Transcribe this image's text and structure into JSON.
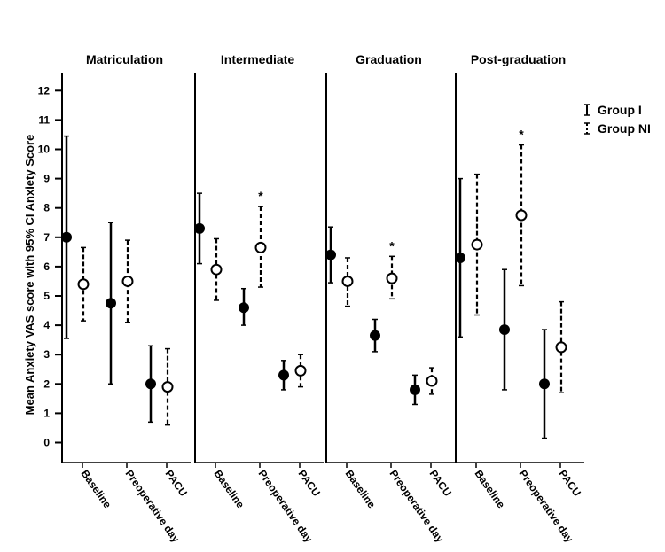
{
  "chart_data": {
    "type": "errorbar",
    "ylabel": "Mean Anxiety VAS score with 95% CI Anxiety Score",
    "yticks": [
      0,
      1,
      2,
      3,
      4,
      5,
      6,
      7,
      8,
      9,
      10,
      11,
      12
    ],
    "ylim": [
      -0.6,
      12.6
    ],
    "categories": [
      "Baseline",
      "Preoperative day",
      "PACU"
    ],
    "legend": {
      "position": "top-right",
      "entries": [
        {
          "label": "Group I",
          "style": "solid"
        },
        {
          "label": "Group NI",
          "style": "dashed"
        }
      ]
    },
    "significance_marker": "*",
    "panels": [
      {
        "title": "Matriculation",
        "series": [
          {
            "name": "Group I",
            "means": [
              7.0,
              4.75,
              2.0
            ],
            "lower": [
              3.55,
              2.0,
              0.7
            ],
            "upper": [
              10.45,
              7.5,
              3.3
            ]
          },
          {
            "name": "Group NI",
            "means": [
              5.4,
              5.5,
              1.9
            ],
            "lower": [
              4.15,
              4.1,
              0.6
            ],
            "upper": [
              6.65,
              6.9,
              3.2
            ]
          }
        ],
        "significant": [
          false,
          false,
          false
        ]
      },
      {
        "title": "Intermediate",
        "series": [
          {
            "name": "Group I",
            "means": [
              7.3,
              4.6,
              2.3
            ],
            "lower": [
              6.1,
              4.0,
              1.8
            ],
            "upper": [
              8.5,
              5.25,
              2.8
            ]
          },
          {
            "name": "Group NI",
            "means": [
              5.9,
              6.65,
              2.45
            ],
            "lower": [
              4.85,
              5.3,
              1.9
            ],
            "upper": [
              6.95,
              8.05,
              3.0
            ]
          }
        ],
        "significant": [
          false,
          true,
          false
        ]
      },
      {
        "title": "Graduation",
        "series": [
          {
            "name": "Group I",
            "means": [
              6.4,
              3.65,
              1.8
            ],
            "lower": [
              5.45,
              3.1,
              1.3
            ],
            "upper": [
              7.35,
              4.2,
              2.3
            ]
          },
          {
            "name": "Group NI",
            "means": [
              5.5,
              5.6,
              2.1
            ],
            "lower": [
              4.65,
              4.9,
              1.65
            ],
            "upper": [
              6.3,
              6.35,
              2.55
            ]
          }
        ],
        "significant": [
          false,
          true,
          false
        ]
      },
      {
        "title": "Post-graduation",
        "series": [
          {
            "name": "Group I",
            "means": [
              6.3,
              3.85,
              2.0
            ],
            "lower": [
              3.6,
              1.8,
              0.15
            ],
            "upper": [
              9.0,
              5.9,
              3.85
            ]
          },
          {
            "name": "Group NI",
            "means": [
              6.75,
              7.75,
              3.25
            ],
            "lower": [
              4.35,
              5.35,
              1.7
            ],
            "upper": [
              9.15,
              10.15,
              4.8
            ]
          }
        ],
        "significant": [
          false,
          true,
          false
        ]
      }
    ]
  }
}
